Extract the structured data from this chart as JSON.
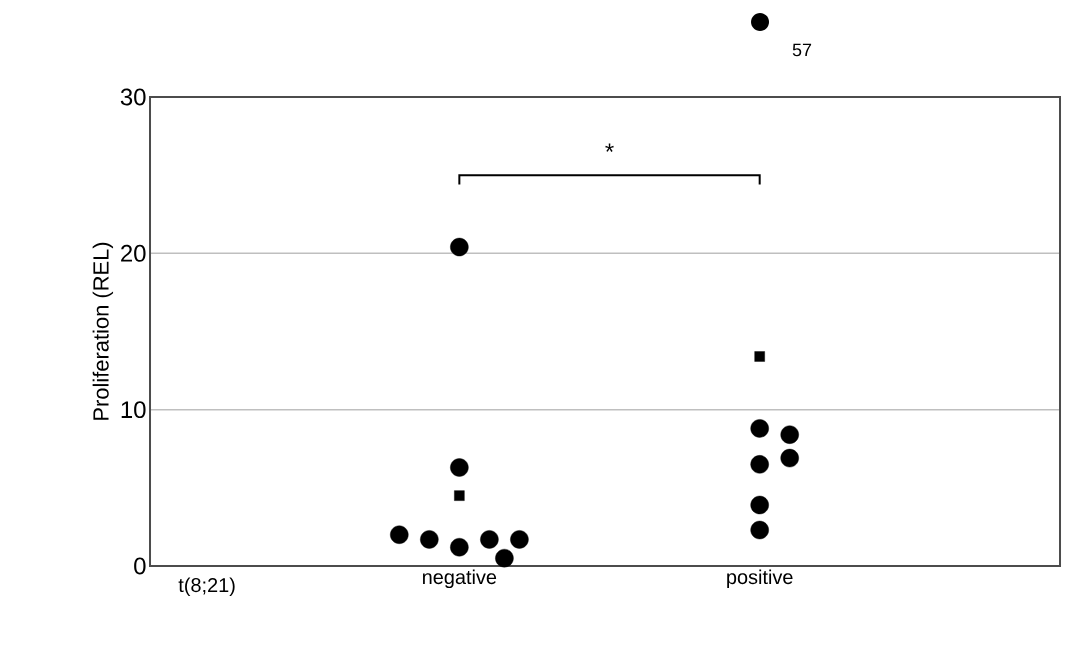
{
  "chart_data": {
    "type": "scatter",
    "ylabel": "Proliferation (REL)",
    "xlabel": "t(8;21)",
    "categories": [
      "negative",
      "positive"
    ],
    "ylim": [
      0,
      30
    ],
    "yticks": [
      0,
      10,
      20,
      30
    ],
    "grid": "y",
    "series": [
      {
        "marker": "circle",
        "color": "#000000",
        "x": [
          "negative",
          "negative",
          "negative",
          "negative",
          "negative",
          "negative",
          "negative",
          "negative",
          "positive",
          "positive",
          "positive",
          "positive",
          "positive",
          "positive"
        ],
        "values": [
          1.2,
          1.7,
          1.7,
          20.4,
          6.3,
          1.7,
          2.0,
          0.5,
          6.5,
          8.8,
          6.9,
          8.4,
          3.9,
          2.3
        ]
      },
      {
        "marker": "square",
        "color": "#000000",
        "x": [
          "negative",
          "positive"
        ],
        "values": [
          4.5,
          13.4
        ]
      }
    ],
    "annotations": [
      "*",
      "57"
    ]
  }
}
